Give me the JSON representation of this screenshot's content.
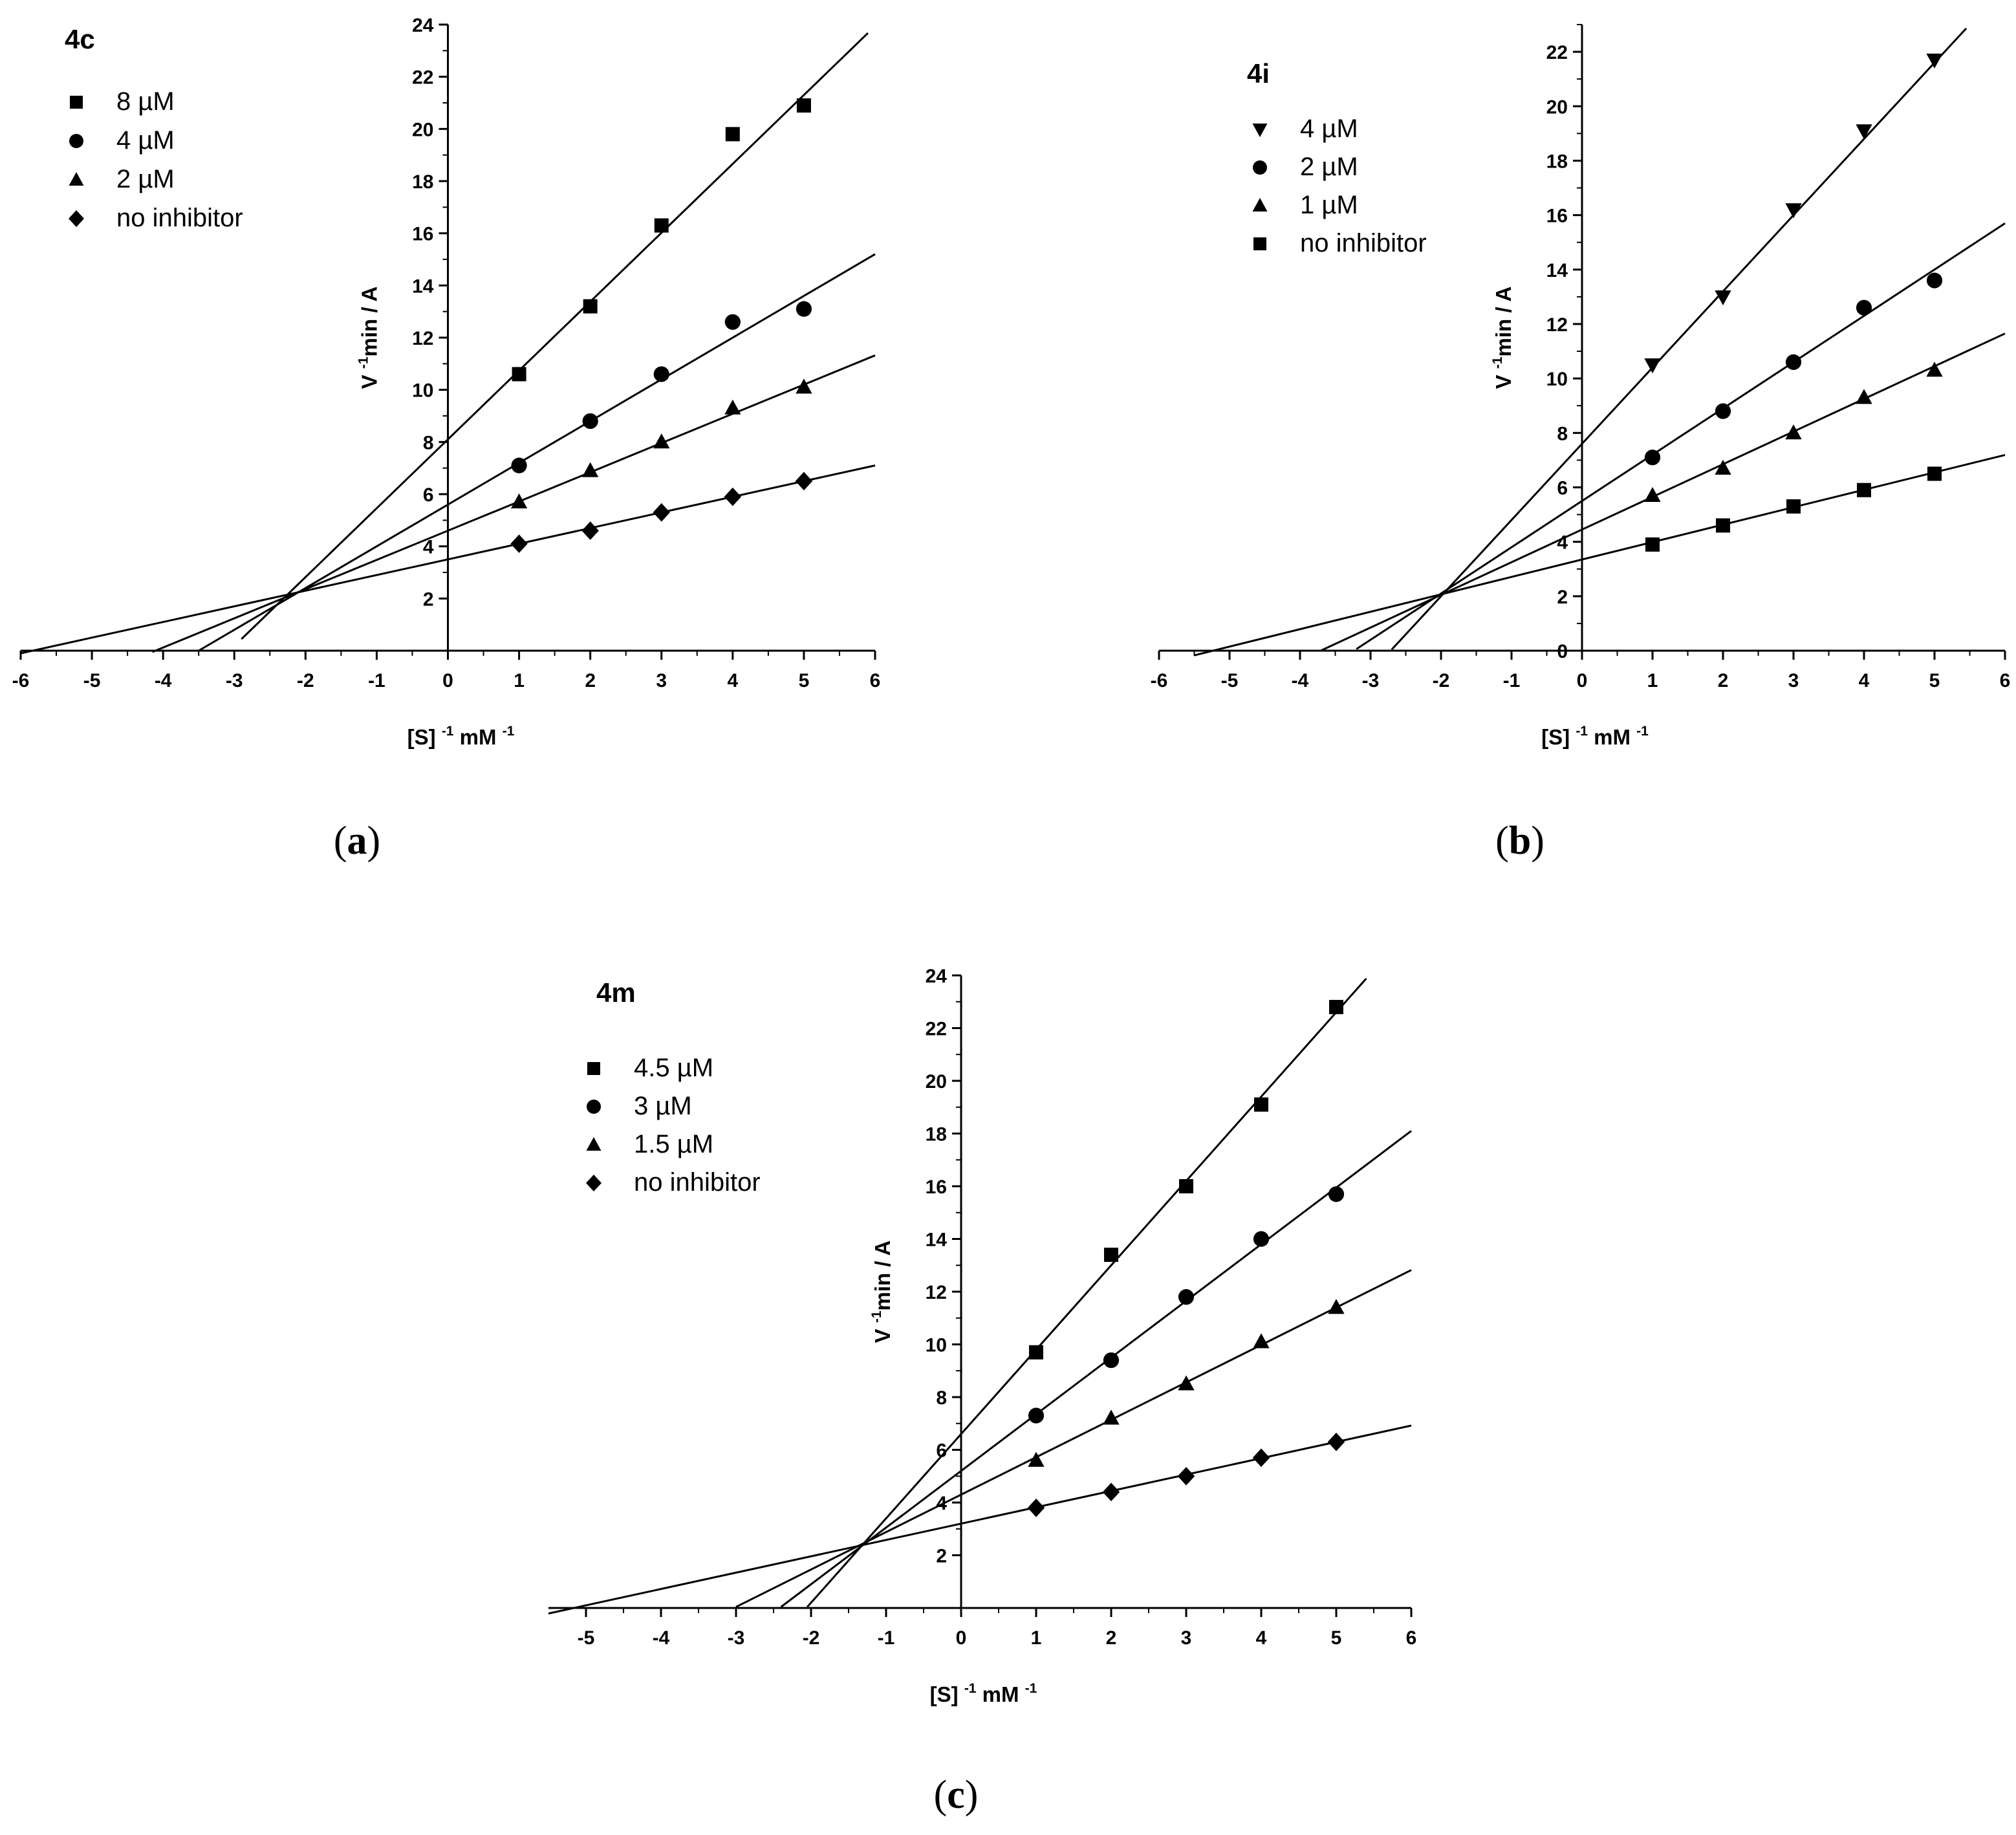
{
  "chart_data": [
    {
      "type": "line",
      "panel": "(a)",
      "title": "4c",
      "xlabel": "[S] -1 mM -1",
      "ylabel": "V -1 min / A",
      "xlim": [
        -6,
        6
      ],
      "ylim": [
        0,
        24
      ],
      "xticks": [
        -6,
        -5,
        -4,
        -3,
        -2,
        -1,
        0,
        1,
        2,
        3,
        4,
        5,
        6
      ],
      "yticks": [
        2,
        4,
        6,
        8,
        10,
        12,
        14,
        16,
        18,
        20,
        22,
        24
      ],
      "grid": false,
      "legend_position": "top-left",
      "series": [
        {
          "name": "8 µM",
          "marker": "square",
          "x": [
            1,
            2,
            3,
            4,
            5
          ],
          "y": [
            10.6,
            13.2,
            16.3,
            19.8,
            20.9
          ],
          "intercept": 8.1,
          "slope": 2.64,
          "fit_xrange": [
            -2.9,
            5.9
          ]
        },
        {
          "name": "4 µM",
          "marker": "circle",
          "x": [
            1,
            2,
            3,
            4,
            5
          ],
          "y": [
            7.1,
            8.8,
            10.6,
            12.6,
            13.1
          ],
          "intercept": 5.6,
          "slope": 1.6,
          "fit_xrange": [
            -3.5,
            6
          ]
        },
        {
          "name": "2 µM",
          "marker": "triangle-up",
          "x": [
            1,
            2,
            3,
            4,
            5
          ],
          "y": [
            5.7,
            6.9,
            8.0,
            9.3,
            10.1
          ],
          "intercept": 4.6,
          "slope": 1.12,
          "fit_xrange": [
            -4.15,
            6
          ]
        },
        {
          "name": "no inhibitor",
          "marker": "diamond",
          "x": [
            1,
            2,
            3,
            4,
            5
          ],
          "y": [
            4.1,
            4.6,
            5.3,
            5.9,
            6.5
          ],
          "intercept": 3.5,
          "slope": 0.6,
          "fit_xrange": [
            -6,
            6
          ]
        }
      ],
      "caption": "(a)",
      "caption_letter": "a"
    },
    {
      "type": "line",
      "panel": "(b)",
      "title": "4i",
      "xlabel": "[S] -1 mM -1",
      "ylabel": "V -1 min / A",
      "xlim": [
        -6,
        6
      ],
      "ylim": [
        0,
        23
      ],
      "xticks": [
        -6,
        -5,
        -4,
        -3,
        -2,
        -1,
        0,
        1,
        2,
        3,
        4,
        5,
        6
      ],
      "yticks": [
        0,
        2,
        4,
        6,
        8,
        10,
        12,
        14,
        16,
        18,
        20,
        22
      ],
      "grid": false,
      "legend_position": "top-left",
      "series": [
        {
          "name": "4 µM",
          "marker": "triangle-down",
          "x": [
            1,
            2,
            3,
            4,
            5
          ],
          "y": [
            10.5,
            13.0,
            16.2,
            19.1,
            21.7
          ],
          "intercept": 7.6,
          "slope": 2.8,
          "fit_xrange": [
            -2.7,
            5.45
          ]
        },
        {
          "name": "2 µM",
          "marker": "circle",
          "x": [
            1,
            2,
            3,
            4,
            5
          ],
          "y": [
            7.1,
            8.8,
            10.6,
            12.6,
            13.6
          ],
          "intercept": 5.5,
          "slope": 1.7,
          "fit_xrange": [
            -3.2,
            6
          ]
        },
        {
          "name": "1 µM",
          "marker": "triangle-up",
          "x": [
            1,
            2,
            3,
            4,
            5
          ],
          "y": [
            5.7,
            6.7,
            8.0,
            9.3,
            10.3
          ],
          "intercept": 4.45,
          "slope": 1.2,
          "fit_xrange": [
            -3.7,
            6
          ]
        },
        {
          "name": "no inhibitor",
          "marker": "square",
          "x": [
            1,
            2,
            3,
            4,
            5
          ],
          "y": [
            3.9,
            4.6,
            5.3,
            5.9,
            6.5
          ],
          "intercept": 3.35,
          "slope": 0.64,
          "fit_xrange": [
            -5.5,
            6
          ]
        }
      ],
      "caption": "(b)",
      "caption_letter": "b"
    },
    {
      "type": "line",
      "panel": "(c)",
      "title": "4m",
      "xlabel": "[S] -1 mM -1",
      "ylabel": "V -1 min / A",
      "xlim": [
        -5.5,
        6
      ],
      "ylim": [
        0,
        24
      ],
      "xticks": [
        -5,
        -4,
        -3,
        -2,
        -1,
        0,
        1,
        2,
        3,
        4,
        5,
        6
      ],
      "yticks": [
        2,
        4,
        6,
        8,
        10,
        12,
        14,
        16,
        18,
        20,
        22,
        24
      ],
      "grid": false,
      "legend_position": "top-left",
      "series": [
        {
          "name": "4.5 µM",
          "marker": "square",
          "x": [
            1,
            2,
            3,
            4,
            5
          ],
          "y": [
            9.7,
            13.4,
            16.0,
            19.1,
            22.8
          ],
          "intercept": 6.6,
          "slope": 3.2,
          "fit_xrange": [
            -2.05,
            5.4
          ]
        },
        {
          "name": "3 µM",
          "marker": "circle",
          "x": [
            1,
            2,
            3,
            4,
            5
          ],
          "y": [
            7.3,
            9.4,
            11.8,
            14.0,
            15.7
          ],
          "intercept": 5.2,
          "slope": 2.15,
          "fit_xrange": [
            -2.4,
            6
          ]
        },
        {
          "name": "1.5 µM",
          "marker": "triangle-up",
          "x": [
            1,
            2,
            3,
            4,
            5
          ],
          "y": [
            5.6,
            7.2,
            8.5,
            10.1,
            11.4
          ],
          "intercept": 4.3,
          "slope": 1.42,
          "fit_xrange": [
            -3.0,
            6
          ]
        },
        {
          "name": "no inhibitor",
          "marker": "diamond",
          "x": [
            1,
            2,
            3,
            4,
            5
          ],
          "y": [
            3.8,
            4.4,
            5.0,
            5.7,
            6.3
          ],
          "intercept": 3.2,
          "slope": 0.62,
          "fit_xrange": [
            -5.5,
            6
          ]
        }
      ],
      "caption": "(c)",
      "caption_letter": "c"
    }
  ]
}
